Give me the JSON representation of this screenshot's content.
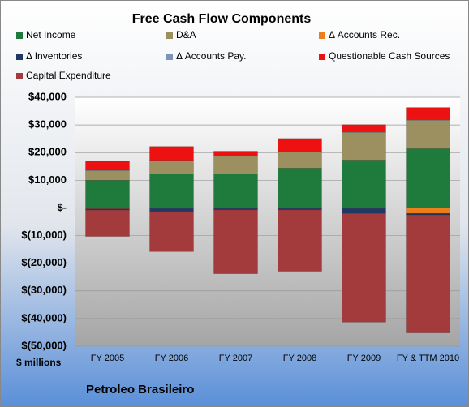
{
  "chart_data": {
    "type": "bar",
    "stacked": true,
    "title": "Free Cash Flow Components",
    "ylabel": "$ millions",
    "footer": "Petroleo Brasileiro",
    "categories": [
      "FY 2005",
      "FY 2006",
      "FY 2007",
      "FY 2008",
      "FY 2009",
      "FY & TTM 2010"
    ],
    "series": [
      {
        "name": "Net Income",
        "color": "#1e7b3c",
        "values": [
          10000,
          12300,
          12300,
          14400,
          17300,
          21400
        ]
      },
      {
        "name": "D&A",
        "color": "#9d9060",
        "values": [
          3500,
          4700,
          6500,
          5800,
          10000,
          10300
        ]
      },
      {
        "name": "Δ Accounts Rec.",
        "color": "#ee7d1c",
        "values": [
          -300,
          -200,
          -200,
          -200,
          -200,
          -2000
        ]
      },
      {
        "name": "Δ Inventories",
        "color": "#1f3864",
        "values": [
          -500,
          -1000,
          -500,
          -500,
          -1800,
          -500
        ]
      },
      {
        "name": "Δ Accounts Pay.",
        "color": "#7f93b8",
        "values": [
          200,
          200,
          200,
          200,
          200,
          200
        ]
      },
      {
        "name": "Questionable Cash Sources",
        "color": "#ee1111",
        "values": [
          3200,
          5000,
          1500,
          4700,
          2600,
          4400
        ]
      },
      {
        "name": "Capital Expenditure",
        "color": "#a33a3c",
        "values": [
          -9500,
          -14600,
          -23100,
          -22200,
          -39300,
          -42700
        ]
      }
    ],
    "ylim": [
      -50000,
      40000
    ],
    "yticks": [
      {
        "value": -50000,
        "label": "$(50,000)"
      },
      {
        "value": -40000,
        "label": "$(40,000)"
      },
      {
        "value": -30000,
        "label": "$(30,000)"
      },
      {
        "value": -20000,
        "label": "$(20,000)"
      },
      {
        "value": -10000,
        "label": "$(10,000)"
      },
      {
        "value": 0,
        "label": "$-"
      },
      {
        "value": 10000,
        "label": "$10,000"
      },
      {
        "value": 20000,
        "label": "$20,000"
      },
      {
        "value": 30000,
        "label": "$30,000"
      },
      {
        "value": 40000,
        "label": "$40,000"
      }
    ],
    "grid": true
  }
}
